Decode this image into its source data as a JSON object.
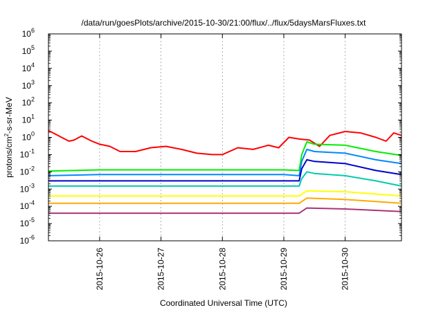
{
  "chart_data": {
    "type": "line",
    "title": "/data/run/goesPlots/archive/2015-10-30/21:00/flux/../flux/5daysMarsFluxes.txt",
    "xlabel": "Coordinated Universal Time (UTC)",
    "ylabel": {
      "prefix": "protons/cm",
      "sup": "2",
      "suffix": "-s-sr-MeV"
    },
    "y_scale": "log",
    "ylim": [
      1e-06,
      1000000.0
    ],
    "y_ticks": [
      {
        "value": 1e-06,
        "base": "10",
        "exp": "-6"
      },
      {
        "value": 1e-05,
        "base": "10",
        "exp": "-5"
      },
      {
        "value": 0.0001,
        "base": "10",
        "exp": "-4"
      },
      {
        "value": 0.001,
        "base": "10",
        "exp": "-3"
      },
      {
        "value": 0.01,
        "base": "10",
        "exp": "-2"
      },
      {
        "value": 0.1,
        "base": "10",
        "exp": "-1"
      },
      {
        "value": 1,
        "base": "10",
        "exp": "0"
      },
      {
        "value": 10,
        "base": "10",
        "exp": "1"
      },
      {
        "value": 100,
        "base": "10",
        "exp": "2"
      },
      {
        "value": 1000,
        "base": "10",
        "exp": "3"
      },
      {
        "value": 10000,
        "base": "10",
        "exp": "4"
      },
      {
        "value": 100000,
        "base": "10",
        "exp": "5"
      },
      {
        "value": 1000000,
        "base": "10",
        "exp": "6"
      }
    ],
    "xlim": [
      "2015-10-25T04:00",
      "2015-10-30T22:00"
    ],
    "x_ticks": [
      {
        "value": "2015-10-26T00:00",
        "label": "2015-10-26"
      },
      {
        "value": "2015-10-27T00:00",
        "label": "2015-10-27"
      },
      {
        "value": "2015-10-28T00:00",
        "label": "2015-10-28"
      },
      {
        "value": "2015-10-29T00:00",
        "label": "2015-10-29"
      },
      {
        "value": "2015-10-30T00:00",
        "label": "2015-10-30"
      }
    ],
    "grid": true,
    "series": [
      {
        "color": "#ff0000",
        "points": [
          [
            "2015-10-25T04:00",
            2.5
          ],
          [
            "2015-10-25T12:00",
            0.6
          ],
          [
            "2015-10-25T14:00",
            0.7
          ],
          [
            "2015-10-25T17:00",
            1.2
          ],
          [
            "2015-10-25T21:00",
            0.6
          ],
          [
            "2015-10-26T00:00",
            0.4
          ],
          [
            "2015-10-26T04:00",
            0.3
          ],
          [
            "2015-10-26T08:00",
            0.15
          ],
          [
            "2015-10-26T14:00",
            0.15
          ],
          [
            "2015-10-26T20:00",
            0.25
          ],
          [
            "2015-10-27T02:00",
            0.3
          ],
          [
            "2015-10-27T08:00",
            0.2
          ],
          [
            "2015-10-27T14:00",
            0.12
          ],
          [
            "2015-10-27T20:00",
            0.1
          ],
          [
            "2015-10-28T00:00",
            0.1
          ],
          [
            "2015-10-28T06:00",
            0.25
          ],
          [
            "2015-10-28T12:00",
            0.2
          ],
          [
            "2015-10-28T18:00",
            0.35
          ],
          [
            "2015-10-28T22:00",
            0.25
          ],
          [
            "2015-10-29T02:00",
            1.0
          ],
          [
            "2015-10-29T06:00",
            0.8
          ],
          [
            "2015-10-29T10:00",
            0.7
          ],
          [
            "2015-10-29T14:00",
            0.3
          ],
          [
            "2015-10-29T18:00",
            1.3
          ],
          [
            "2015-10-30T00:00",
            2.2
          ],
          [
            "2015-10-30T06:00",
            1.8
          ],
          [
            "2015-10-30T12:00",
            1.0
          ],
          [
            "2015-10-30T16:00",
            0.6
          ],
          [
            "2015-10-30T19:00",
            1.8
          ],
          [
            "2015-10-30T22:00",
            1.3
          ]
        ]
      },
      {
        "color": "#00ee00",
        "points": [
          [
            "2015-10-25T04:00",
            0.011
          ],
          [
            "2015-10-26T00:00",
            0.013
          ],
          [
            "2015-10-27T00:00",
            0.013
          ],
          [
            "2015-10-28T00:00",
            0.013
          ],
          [
            "2015-10-29T00:00",
            0.013
          ],
          [
            "2015-10-29T06:00",
            0.012
          ],
          [
            "2015-10-29T07:00",
            0.1
          ],
          [
            "2015-10-29T09:00",
            0.55
          ],
          [
            "2015-10-29T12:00",
            0.4
          ],
          [
            "2015-10-30T00:00",
            0.35
          ],
          [
            "2015-10-30T12:00",
            0.15
          ],
          [
            "2015-10-30T22:00",
            0.09
          ]
        ]
      },
      {
        "color": "#0088ff",
        "points": [
          [
            "2015-10-25T04:00",
            0.006
          ],
          [
            "2015-10-26T00:00",
            0.007
          ],
          [
            "2015-10-27T00:00",
            0.007
          ],
          [
            "2015-10-28T00:00",
            0.007
          ],
          [
            "2015-10-29T00:00",
            0.007
          ],
          [
            "2015-10-29T06:00",
            0.006
          ],
          [
            "2015-10-29T07:00",
            0.04
          ],
          [
            "2015-10-29T09:00",
            0.2
          ],
          [
            "2015-10-29T12:00",
            0.15
          ],
          [
            "2015-10-30T00:00",
            0.12
          ],
          [
            "2015-10-30T12:00",
            0.05
          ],
          [
            "2015-10-30T22:00",
            0.03
          ]
        ]
      },
      {
        "color": "#0000cc",
        "points": [
          [
            "2015-10-25T04:00",
            0.003
          ],
          [
            "2015-10-26T00:00",
            0.003
          ],
          [
            "2015-10-27T00:00",
            0.003
          ],
          [
            "2015-10-28T00:00",
            0.003
          ],
          [
            "2015-10-29T00:00",
            0.003
          ],
          [
            "2015-10-29T06:00",
            0.003
          ],
          [
            "2015-10-29T07:00",
            0.015
          ],
          [
            "2015-10-29T09:00",
            0.05
          ],
          [
            "2015-10-29T12:00",
            0.04
          ],
          [
            "2015-10-30T00:00",
            0.03
          ],
          [
            "2015-10-30T12:00",
            0.012
          ],
          [
            "2015-10-30T22:00",
            0.007
          ]
        ]
      },
      {
        "color": "#00ccaa",
        "points": [
          [
            "2015-10-25T04:00",
            0.0015
          ],
          [
            "2015-10-26T00:00",
            0.0015
          ],
          [
            "2015-10-27T00:00",
            0.0015
          ],
          [
            "2015-10-28T00:00",
            0.0015
          ],
          [
            "2015-10-29T00:00",
            0.0015
          ],
          [
            "2015-10-29T06:00",
            0.0015
          ],
          [
            "2015-10-29T07:00",
            0.004
          ],
          [
            "2015-10-29T09:00",
            0.01
          ],
          [
            "2015-10-29T12:00",
            0.008
          ],
          [
            "2015-10-30T00:00",
            0.006
          ],
          [
            "2015-10-30T12:00",
            0.003
          ],
          [
            "2015-10-30T22:00",
            0.0015
          ]
        ]
      },
      {
        "color": "#ffff00",
        "points": [
          [
            "2015-10-25T04:00",
            0.0004
          ],
          [
            "2015-10-26T00:00",
            0.0004
          ],
          [
            "2015-10-27T00:00",
            0.0004
          ],
          [
            "2015-10-28T00:00",
            0.0004
          ],
          [
            "2015-10-29T00:00",
            0.0004
          ],
          [
            "2015-10-29T06:00",
            0.0004
          ],
          [
            "2015-10-29T09:00",
            0.0008
          ],
          [
            "2015-10-30T00:00",
            0.0007
          ],
          [
            "2015-10-30T22:00",
            0.0004
          ]
        ]
      },
      {
        "color": "#ffaa00",
        "points": [
          [
            "2015-10-25T04:00",
            0.00015
          ],
          [
            "2015-10-26T00:00",
            0.00015
          ],
          [
            "2015-10-27T00:00",
            0.00015
          ],
          [
            "2015-10-28T00:00",
            0.00015
          ],
          [
            "2015-10-29T00:00",
            0.00015
          ],
          [
            "2015-10-29T06:00",
            0.00015
          ],
          [
            "2015-10-29T09:00",
            0.0003
          ],
          [
            "2015-10-30T00:00",
            0.00025
          ],
          [
            "2015-10-30T22:00",
            0.00015
          ]
        ]
      },
      {
        "color": "#aa3377",
        "points": [
          [
            "2015-10-25T04:00",
            4e-05
          ],
          [
            "2015-10-26T00:00",
            4e-05
          ],
          [
            "2015-10-27T00:00",
            4e-05
          ],
          [
            "2015-10-28T00:00",
            4e-05
          ],
          [
            "2015-10-29T00:00",
            4e-05
          ],
          [
            "2015-10-29T06:00",
            4e-05
          ],
          [
            "2015-10-29T09:00",
            8e-05
          ],
          [
            "2015-10-30T00:00",
            7e-05
          ],
          [
            "2015-10-30T22:00",
            5e-05
          ]
        ]
      }
    ]
  }
}
